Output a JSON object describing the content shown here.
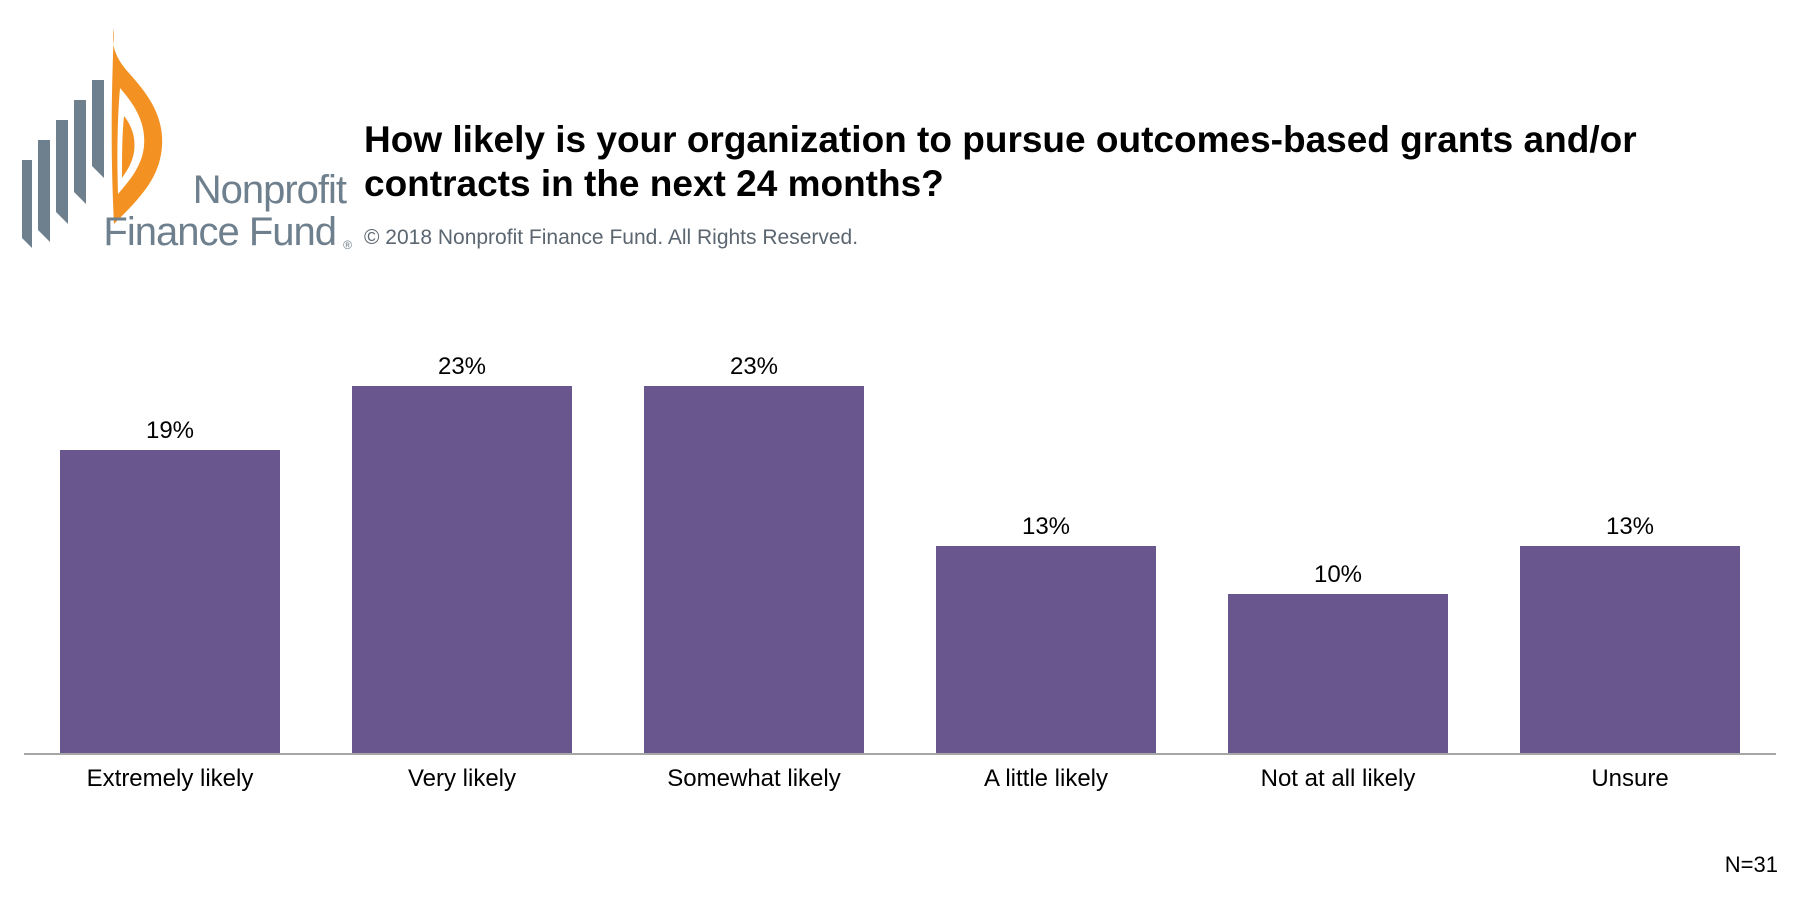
{
  "logo": {
    "line1": "Nonprofit",
    "line2": "Finance Fund",
    "registered": "®",
    "colors": {
      "flame": "#f39223",
      "stripes": "#6e7f8d"
    }
  },
  "header": {
    "title": "How likely is your organization to pursue outcomes-based grants and/or contracts in the next 24 months?",
    "copyright": "© 2018 Nonprofit Finance Fund. All Rights Reserved."
  },
  "chart_data": {
    "type": "bar",
    "title": "How likely is your organization to pursue outcomes-based grants and/or contracts in the next 24 months?",
    "categories": [
      "Extremely likely",
      "Very likely",
      "Somewhat likely",
      "A little likely",
      "Not at all likely",
      "Unsure"
    ],
    "values": [
      19,
      23,
      23,
      13,
      10,
      13
    ],
    "value_labels": [
      "19%",
      "23%",
      "23%",
      "13%",
      "10%",
      "13%"
    ],
    "unit": "%",
    "ylim": [
      0,
      25
    ],
    "xlabel": "",
    "ylabel": "",
    "grid": false,
    "bar_color": "#6a568f",
    "axis_color": "#a6a6a6"
  },
  "footnote": "N=31"
}
